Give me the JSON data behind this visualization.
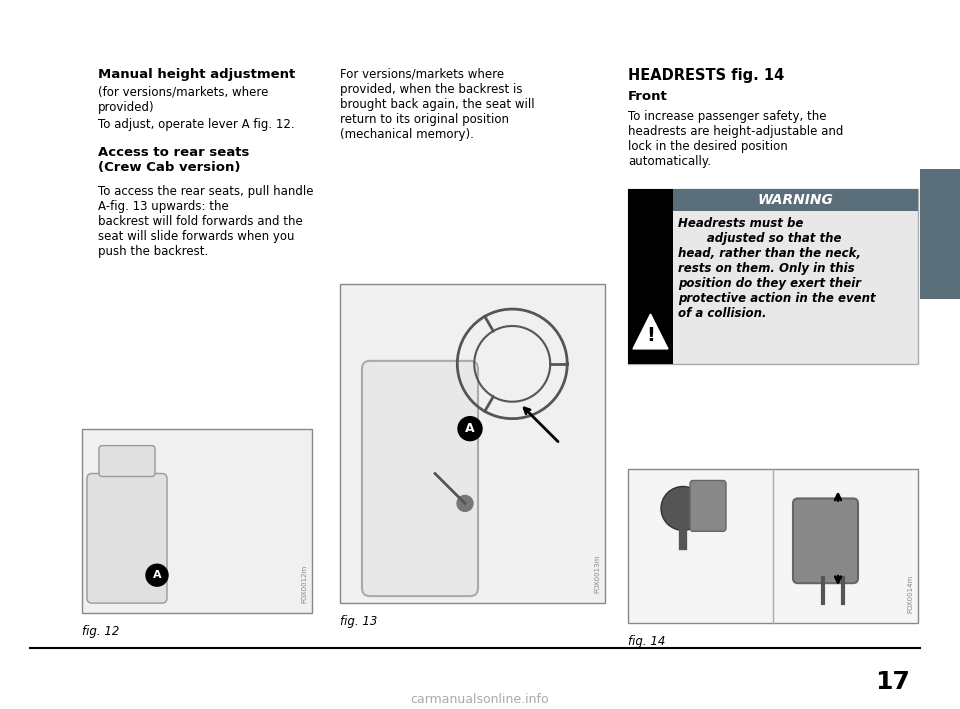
{
  "bg_color": "#ffffff",
  "page_number": "17",
  "tab_color": "#5a6e7a",
  "col1": {
    "heading1": "Manual height adjustment",
    "subheading1": "(for versions/markets, where\nprovided)",
    "para1": "To adjust, operate lever A fig. 12.",
    "heading2": "Access to rear seats\n(Crew Cab version)",
    "para2": "To access the rear seats, pull handle\nA-fig. 13 upwards: the\nbackrest will fold forwards and the\nseat will slide forwards when you\npush the backrest.",
    "fig_label": "fig. 12"
  },
  "col2": {
    "para1": "For versions/markets where\nprovided, when the backrest is\nbrought back again, the seat will\nreturn to its original position\n(mechanical memory).",
    "fig_label": "fig. 13"
  },
  "col3": {
    "heading1": "HEADRESTS fig. 14",
    "subheading1": "Front",
    "para1": "To increase passenger safety, the\nheadrests are height-adjustable and\nlock in the desired position\nautomatically.",
    "warning_title": "WARNING",
    "warning_text": "Headrests must be\n        adjusted so that the\nhead, rather than the neck,\nrests on them. Only in this\nposition do they exert their\nprotective action in the event\nof a collision.",
    "fig_label": "fig. 14"
  },
  "watermark": "carmanualsonline.info",
  "font_family": "DejaVu Sans",
  "heading_fontsize": 9.5,
  "body_fontsize": 8.5,
  "small_fontsize": 7.5,
  "page_num_fontsize": 18
}
